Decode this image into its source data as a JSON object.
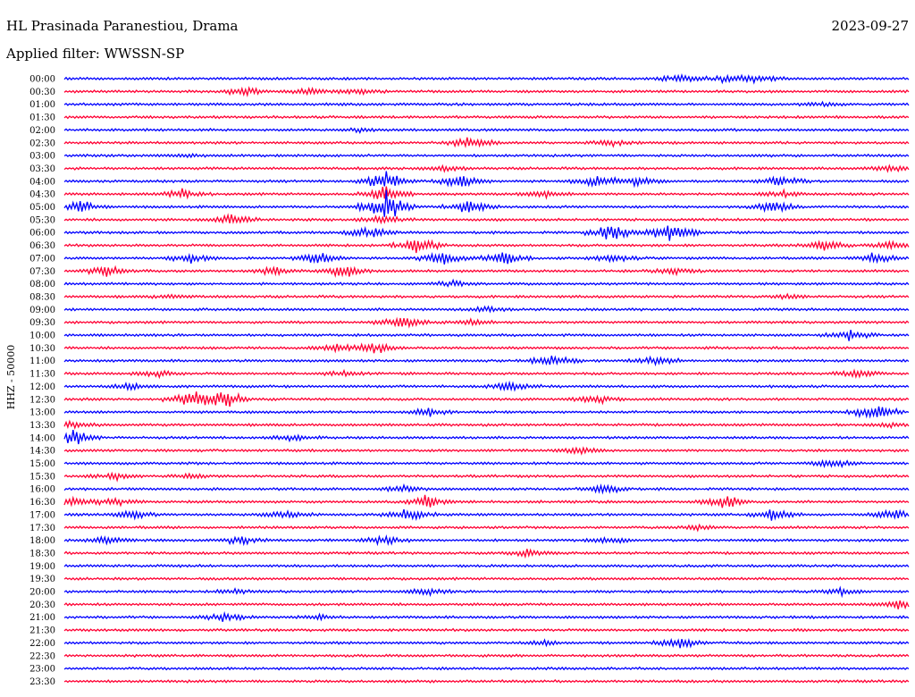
{
  "header": {
    "station": "HL Prasinada Paranestiou, Drama",
    "date": "2023-09-27",
    "filter": "Applied filter: WWSSN-SP"
  },
  "chart_data": {
    "type": "line",
    "title": "HL Prasinada Paranestiou, Drama",
    "ylabel": "HHZ - 50000",
    "xlabel": "",
    "rows": [
      "00:00",
      "00:30",
      "01:00",
      "01:30",
      "02:00",
      "02:30",
      "03:00",
      "03:30",
      "04:00",
      "04:30",
      "05:00",
      "05:30",
      "06:00",
      "06:30",
      "07:00",
      "07:30",
      "08:00",
      "08:30",
      "09:00",
      "09:30",
      "10:00",
      "10:30",
      "11:00",
      "11:30",
      "12:00",
      "12:30",
      "13:00",
      "13:30",
      "14:00",
      "14:30",
      "15:00",
      "15:30",
      "16:00",
      "16:30",
      "17:00",
      "17:30",
      "18:00",
      "18:30",
      "19:00",
      "19:30",
      "20:00",
      "20:30",
      "21:00",
      "21:30",
      "22:00",
      "22:30",
      "23:00",
      "23:30"
    ],
    "colors": [
      "#0000ff",
      "#ff0033"
    ],
    "row_duration_minutes": 30,
    "grid": false,
    "legend": "none",
    "activity": [
      {
        "row": 0,
        "bursts": [
          [
            0.73,
            4
          ],
          [
            0.78,
            3
          ],
          [
            0.82,
            3.5
          ]
        ]
      },
      {
        "row": 1,
        "bursts": [
          [
            0.21,
            4
          ],
          [
            0.29,
            2.5
          ],
          [
            0.35,
            2.5
          ]
        ]
      },
      {
        "row": 2,
        "bursts": [
          [
            0.9,
            1.5
          ]
        ]
      },
      {
        "row": 4,
        "bursts": [
          [
            0.35,
            1.5
          ]
        ]
      },
      {
        "row": 5,
        "bursts": [
          [
            0.48,
            6
          ],
          [
            0.65,
            2
          ]
        ]
      },
      {
        "row": 6,
        "bursts": [
          [
            0.15,
            1.5
          ]
        ]
      },
      {
        "row": 7,
        "bursts": [
          [
            0.45,
            2.5
          ],
          [
            0.98,
            3
          ]
        ]
      },
      {
        "row": 8,
        "bursts": [
          [
            0.38,
            10
          ],
          [
            0.47,
            7
          ],
          [
            0.63,
            5
          ],
          [
            0.68,
            4
          ],
          [
            0.85,
            5
          ]
        ]
      },
      {
        "row": 9,
        "bursts": [
          [
            0.14,
            4
          ],
          [
            0.38,
            7
          ],
          [
            0.57,
            3
          ],
          [
            0.85,
            3
          ]
        ]
      },
      {
        "row": 10,
        "bursts": [
          [
            0.02,
            5
          ],
          [
            0.38,
            14
          ],
          [
            0.48,
            6
          ],
          [
            0.84,
            6
          ]
        ]
      },
      {
        "row": 11,
        "bursts": [
          [
            0.2,
            5
          ],
          [
            0.38,
            4
          ]
        ]
      },
      {
        "row": 12,
        "bursts": [
          [
            0.36,
            6
          ],
          [
            0.65,
            8
          ],
          [
            0.72,
            10
          ]
        ]
      },
      {
        "row": 13,
        "bursts": [
          [
            0.42,
            7
          ],
          [
            0.9,
            5
          ],
          [
            0.98,
            4
          ]
        ]
      },
      {
        "row": 14,
        "bursts": [
          [
            0.15,
            4
          ],
          [
            0.3,
            5
          ],
          [
            0.45,
            7
          ],
          [
            0.52,
            6
          ],
          [
            0.65,
            4
          ],
          [
            0.96,
            5
          ]
        ]
      },
      {
        "row": 15,
        "bursts": [
          [
            0.05,
            5
          ],
          [
            0.25,
            4
          ],
          [
            0.33,
            6
          ],
          [
            0.72,
            3
          ]
        ]
      },
      {
        "row": 16,
        "bursts": [
          [
            0.46,
            3
          ]
        ]
      },
      {
        "row": 17,
        "bursts": [
          [
            0.13,
            1.5
          ],
          [
            0.86,
            1.5
          ]
        ]
      },
      {
        "row": 18,
        "bursts": [
          [
            0.5,
            2
          ]
        ]
      },
      {
        "row": 19,
        "bursts": [
          [
            0.4,
            6
          ],
          [
            0.48,
            3
          ]
        ]
      },
      {
        "row": 20,
        "bursts": [
          [
            0.93,
            5
          ]
        ]
      },
      {
        "row": 21,
        "bursts": [
          [
            0.32,
            3
          ],
          [
            0.37,
            5
          ]
        ]
      },
      {
        "row": 22,
        "bursts": [
          [
            0.58,
            5
          ],
          [
            0.7,
            4
          ]
        ]
      },
      {
        "row": 23,
        "bursts": [
          [
            0.11,
            3
          ],
          [
            0.33,
            2
          ],
          [
            0.94,
            4
          ]
        ]
      },
      {
        "row": 24,
        "bursts": [
          [
            0.08,
            3
          ],
          [
            0.53,
            5
          ]
        ]
      },
      {
        "row": 25,
        "bursts": [
          [
            0.15,
            7
          ],
          [
            0.19,
            8
          ],
          [
            0.63,
            4
          ]
        ]
      },
      {
        "row": 26,
        "bursts": [
          [
            0.43,
            4
          ],
          [
            0.96,
            8
          ]
        ]
      },
      {
        "row": 27,
        "bursts": [
          [
            0.01,
            3
          ],
          [
            0.98,
            2
          ]
        ]
      },
      {
        "row": 28,
        "bursts": [
          [
            0.01,
            6
          ],
          [
            0.27,
            3
          ]
        ]
      },
      {
        "row": 29,
        "bursts": [
          [
            0.61,
            3
          ]
        ]
      },
      {
        "row": 30,
        "bursts": [
          [
            0.91,
            4
          ]
        ]
      },
      {
        "row": 31,
        "bursts": [
          [
            0.06,
            3
          ],
          [
            0.15,
            2
          ]
        ]
      },
      {
        "row": 32,
        "bursts": [
          [
            0.4,
            3
          ],
          [
            0.64,
            4
          ]
        ]
      },
      {
        "row": 33,
        "bursts": [
          [
            0.01,
            4
          ],
          [
            0.06,
            3
          ],
          [
            0.43,
            6
          ],
          [
            0.78,
            7
          ]
        ]
      },
      {
        "row": 34,
        "bursts": [
          [
            0.08,
            4
          ],
          [
            0.26,
            4
          ],
          [
            0.41,
            6
          ],
          [
            0.84,
            5
          ],
          [
            0.98,
            4
          ]
        ]
      },
      {
        "row": 35,
        "bursts": [
          [
            0.75,
            2
          ]
        ]
      },
      {
        "row": 36,
        "bursts": [
          [
            0.05,
            4
          ],
          [
            0.21,
            4
          ],
          [
            0.38,
            4
          ],
          [
            0.65,
            3
          ]
        ]
      },
      {
        "row": 37,
        "bursts": [
          [
            0.55,
            3
          ]
        ]
      },
      {
        "row": 40,
        "bursts": [
          [
            0.2,
            2
          ],
          [
            0.43,
            3
          ],
          [
            0.92,
            3
          ]
        ]
      },
      {
        "row": 41,
        "bursts": [
          [
            0.99,
            4
          ]
        ]
      },
      {
        "row": 42,
        "bursts": [
          [
            0.19,
            4
          ],
          [
            0.3,
            2
          ]
        ]
      },
      {
        "row": 44,
        "bursts": [
          [
            0.57,
            2
          ],
          [
            0.73,
            5
          ]
        ]
      }
    ]
  }
}
